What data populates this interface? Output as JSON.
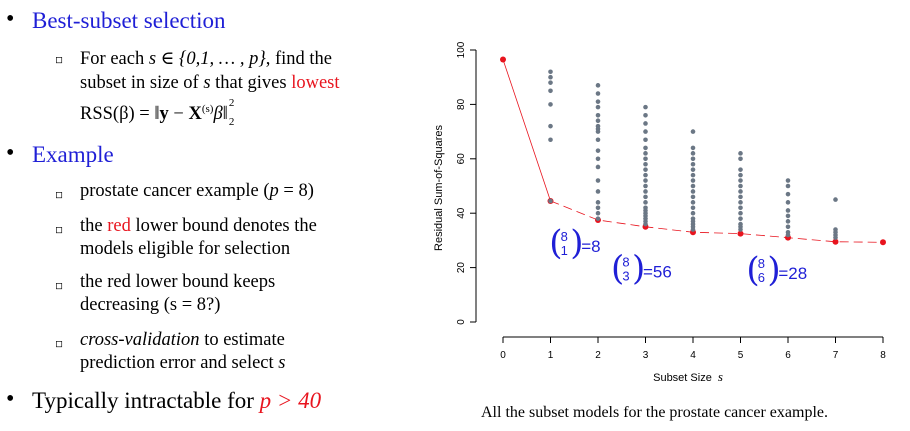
{
  "slide": {
    "bullet1": {
      "title": "Best-subset selection",
      "sub": {
        "line1_a": "For each ",
        "line1_math": "s ∈ {0,1, … , p}",
        "line1_b": ", find the",
        "line2_a": "subset in size of ",
        "line2_s": "s",
        "line2_b": " that gives ",
        "line2_lowest": "lowest",
        "line3_rss": "RSS(β) = ‖",
        "line3_y": "y",
        "line3_minus": " − ",
        "line3_X": "X",
        "line3_sup": "(s)",
        "line3_beta": "β",
        "line3_close": "‖",
        "line3_sup2": "2",
        "line3_sub2": "2"
      }
    },
    "bullet2": {
      "title": "Example",
      "items": [
        {
          "pre": "prostate cancer example (",
          "math": "p",
          "post": " = 8)"
        },
        {
          "pre": "the ",
          "red": "red",
          "post": " lower bound denotes the",
          "line2": "models eligible for selection"
        },
        {
          "line1": "the red lower bound keeps",
          "line2": "decreasing (s = 8?)"
        },
        {
          "ital": "cross-validation",
          "post": " to estimate",
          "line2_pre": "prediction error and select ",
          "line2_s": "s"
        }
      ]
    },
    "bullet3": {
      "pre": "Typically intractable for ",
      "math": "p > 40"
    },
    "caption": "All the subset models for the prostate cancer example."
  },
  "chart_data": {
    "type": "scatter",
    "xlabel": "Subset Size",
    "xlabel_var": "s",
    "ylabel": "Residual Sum-of-Squares",
    "xlim": [
      0,
      8
    ],
    "ylim": [
      0,
      100
    ],
    "xticks": [
      "0",
      "1",
      "2",
      "3",
      "4",
      "5",
      "6",
      "7",
      "8"
    ],
    "yticks": [
      "0",
      "20",
      "40",
      "60",
      "80",
      "100"
    ],
    "colors": {
      "points": "#6b7785",
      "bound": "#e8141e",
      "annotation": "#1f1fd6"
    },
    "series": [
      {
        "values": [
          [
            1,
            92
          ],
          [
            1,
            90
          ],
          [
            1,
            88
          ],
          [
            1,
            85
          ],
          [
            1,
            80
          ],
          [
            1,
            72
          ],
          [
            1,
            67
          ],
          [
            1,
            44.5
          ],
          [
            2,
            87
          ],
          [
            2,
            84
          ],
          [
            2,
            81
          ],
          [
            2,
            79
          ],
          [
            2,
            76
          ],
          [
            2,
            74
          ],
          [
            2,
            72
          ],
          [
            2,
            71
          ],
          [
            2,
            70
          ],
          [
            2,
            67
          ],
          [
            2,
            63
          ],
          [
            2,
            60
          ],
          [
            2,
            57
          ],
          [
            2,
            52
          ],
          [
            2,
            48
          ],
          [
            2,
            44
          ],
          [
            2,
            42
          ],
          [
            2,
            40
          ],
          [
            2,
            38
          ],
          [
            3,
            79
          ],
          [
            3,
            76
          ],
          [
            3,
            73
          ],
          [
            3,
            70
          ],
          [
            3,
            67
          ],
          [
            3,
            64
          ],
          [
            3,
            62
          ],
          [
            3,
            60
          ],
          [
            3,
            58
          ],
          [
            3,
            56
          ],
          [
            3,
            54
          ],
          [
            3,
            52
          ],
          [
            3,
            50
          ],
          [
            3,
            48
          ],
          [
            3,
            46
          ],
          [
            3,
            44
          ],
          [
            3,
            42
          ],
          [
            3,
            41
          ],
          [
            3,
            40
          ],
          [
            3,
            39
          ],
          [
            3,
            38
          ],
          [
            3,
            37
          ],
          [
            3,
            36
          ],
          [
            4,
            70
          ],
          [
            4,
            64
          ],
          [
            4,
            62
          ],
          [
            4,
            60
          ],
          [
            4,
            58
          ],
          [
            4,
            56
          ],
          [
            4,
            54
          ],
          [
            4,
            52
          ],
          [
            4,
            50
          ],
          [
            4,
            48
          ],
          [
            4,
            46
          ],
          [
            4,
            44
          ],
          [
            4,
            42
          ],
          [
            4,
            40
          ],
          [
            4,
            38
          ],
          [
            4,
            37
          ],
          [
            4,
            36
          ],
          [
            4,
            35
          ],
          [
            4,
            34
          ],
          [
            5,
            62
          ],
          [
            5,
            60
          ],
          [
            5,
            56
          ],
          [
            5,
            54
          ],
          [
            5,
            52
          ],
          [
            5,
            50
          ],
          [
            5,
            48
          ],
          [
            5,
            46
          ],
          [
            5,
            44
          ],
          [
            5,
            42
          ],
          [
            5,
            40
          ],
          [
            5,
            38
          ],
          [
            5,
            36
          ],
          [
            5,
            35
          ],
          [
            5,
            34
          ],
          [
            6,
            52
          ],
          [
            6,
            50
          ],
          [
            6,
            47
          ],
          [
            6,
            44
          ],
          [
            6,
            41
          ],
          [
            6,
            39
          ],
          [
            6,
            37
          ],
          [
            6,
            35
          ],
          [
            6,
            33
          ],
          [
            6,
            32
          ],
          [
            7,
            45
          ],
          [
            7,
            34
          ],
          [
            7,
            33
          ],
          [
            7,
            32
          ],
          [
            7,
            31
          ]
        ]
      },
      {
        "x": [
          0,
          1,
          2,
          3,
          4,
          5,
          6,
          7,
          8
        ],
        "values": [
          96.5,
          44.5,
          37.5,
          35,
          33,
          32.5,
          31,
          29.5,
          29.3
        ]
      }
    ],
    "annotations": [
      {
        "top": "8",
        "bottom": "1",
        "text": "=8",
        "x": 1.1,
        "y": 28
      },
      {
        "top": "8",
        "bottom": "3",
        "text": "=56",
        "x": 2.4,
        "y": 18.5
      },
      {
        "top": "8",
        "bottom": "6",
        "text": "=28",
        "x": 5.25,
        "y": 18
      }
    ]
  }
}
